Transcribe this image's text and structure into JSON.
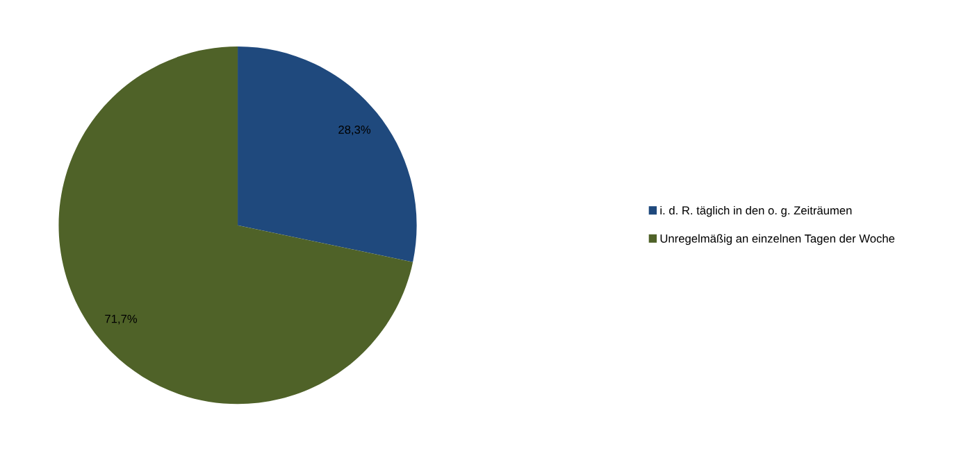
{
  "chart_data": {
    "type": "pie",
    "categories": [
      "i. d. R. täglich in den o. g. Zeiträumen",
      "Unregelmäßig an einzelnen Tagen der Woche"
    ],
    "values": [
      28.3,
      71.7
    ],
    "colors": [
      "#1f497d",
      "#4f6228"
    ],
    "value_labels": [
      "28,3%",
      "71,7%"
    ],
    "legend": "right"
  }
}
